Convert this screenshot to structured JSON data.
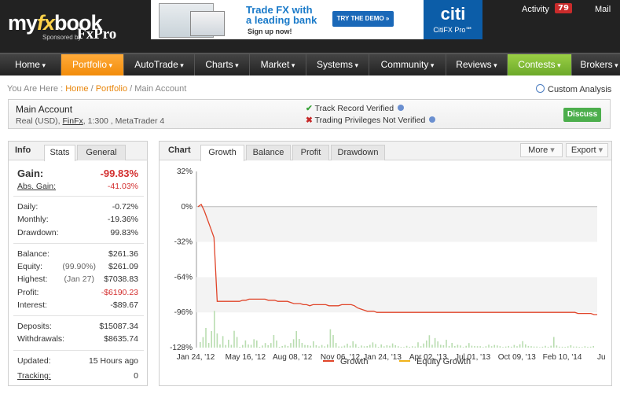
{
  "header": {
    "logo": {
      "pre": "my",
      "fx": "fx",
      "post": "book"
    },
    "sponsor": {
      "label": "Sponsored by",
      "brand": "FxPro"
    },
    "banner": {
      "headline_1": "Trade FX with",
      "headline_2": "a leading bank",
      "signup": "Sign up now!",
      "cta": "TRY THE DEMO »",
      "brand": "citi",
      "brand_sub": "CitiFX Pro℠"
    },
    "activity_label": "Activity",
    "activity_count": "79",
    "mail_label": "Mail"
  },
  "nav": {
    "items": [
      "Home",
      "Portfolio",
      "AutoTrade",
      "Charts",
      "Market",
      "Systems",
      "Community",
      "Reviews",
      "Contests",
      "Brokers"
    ],
    "active": "Portfolio",
    "highlight": "Contests"
  },
  "breadcrumb": {
    "prefix": "You Are Here :",
    "home": "Home",
    "portfolio": "Portfolio",
    "current": "Main Account"
  },
  "custom_analysis": "Custom Analysis",
  "account": {
    "name": "Main Account",
    "type": "Real (USD),",
    "broker": "FinFx",
    "details": ", 1:300 , MetaTrader 4",
    "track_record": "Track Record Verified",
    "trading_privileges": "Trading Privileges Not Verified",
    "discuss": "Discuss"
  },
  "info_panel": {
    "title": "Info",
    "tabs": [
      "Stats",
      "General"
    ],
    "gain": {
      "label": "Gain:",
      "value": "-99.83%"
    },
    "abs_gain": {
      "label": "Abs. Gain:",
      "value": "-41.03%"
    },
    "daily": {
      "label": "Daily:",
      "value": "-0.72%"
    },
    "monthly": {
      "label": "Monthly:",
      "value": "-19.36%"
    },
    "drawdown": {
      "label": "Drawdown:",
      "value": "99.83%"
    },
    "balance": {
      "label": "Balance:",
      "value": "$261.36"
    },
    "equity": {
      "label": "Equity:",
      "pre": "(99.90%)",
      "value": "$261.09"
    },
    "highest": {
      "label": "Highest:",
      "pre": "(Jan 27)",
      "value": "$7038.83"
    },
    "profit": {
      "label": "Profit:",
      "value": "-$6190.23"
    },
    "interest": {
      "label": "Interest:",
      "value": "-$89.67"
    },
    "deposits": {
      "label": "Deposits:",
      "value": "$15087.34"
    },
    "withdrawals": {
      "label": "Withdrawals:",
      "value": "$8635.74"
    },
    "updated": {
      "label": "Updated:",
      "value": "15 Hours ago"
    },
    "tracking": {
      "label": "Tracking:",
      "value": "0"
    }
  },
  "chart_panel": {
    "title": "Chart",
    "tabs": [
      "Growth",
      "Balance",
      "Profit",
      "Drawdown"
    ],
    "active_tab": "Growth",
    "more": "More",
    "export": "Export"
  },
  "chart_data": {
    "type": "line",
    "title": "",
    "y_ticks": [
      "32%",
      "0%",
      "-32%",
      "-64%",
      "-96%",
      "-128%"
    ],
    "ylim": [
      -128,
      32
    ],
    "x_ticks": [
      "Jan 24, '12",
      "May 16, '12",
      "Aug 08, '12",
      "Nov 06, '12",
      "Jan 24, '13",
      "Apr 02, '13",
      "Jul 01, '13",
      "Oct 09, '13",
      "Feb 10, '14",
      "Ju"
    ],
    "series": [
      {
        "name": "Growth",
        "color": "#e0452a",
        "values": [
          0,
          2,
          -4,
          -12,
          -20,
          -28,
          -86,
          -86,
          -86,
          -86,
          -86,
          -86,
          -86,
          -86,
          -85,
          -85,
          -84,
          -84,
          -84,
          -84,
          -84,
          -84,
          -85,
          -85,
          -85,
          -86,
          -86,
          -86,
          -86,
          -87,
          -88,
          -88,
          -88,
          -89,
          -89,
          -90,
          -89,
          -89,
          -89,
          -89,
          -89,
          -90,
          -90,
          -90,
          -90,
          -89,
          -89,
          -89,
          -89,
          -90,
          -92,
          -93,
          -94,
          -95,
          -95,
          -95,
          -96,
          -96,
          -96,
          -96,
          -96,
          -96,
          -96,
          -96,
          -96,
          -96,
          -96,
          -96,
          -96,
          -96,
          -96,
          -96,
          -96,
          -96,
          -96,
          -96,
          -96,
          -96,
          -96,
          -96,
          -96,
          -96,
          -96,
          -96,
          -96,
          -96,
          -96,
          -96,
          -96,
          -96,
          -96,
          -96,
          -96,
          -96,
          -96,
          -96,
          -96,
          -96,
          -96,
          -96,
          -96,
          -96,
          -96,
          -96,
          -96,
          -96,
          -96,
          -96,
          -96,
          -96,
          -96,
          -96,
          -96,
          -96,
          -96,
          -96,
          -96,
          -96,
          -96,
          -97,
          -97,
          -97,
          -97,
          -97,
          -98,
          -98
        ]
      },
      {
        "name": "Equity Growth",
        "color": "#f0b21a",
        "values": []
      }
    ],
    "volume_color": "#b9ddb0"
  }
}
